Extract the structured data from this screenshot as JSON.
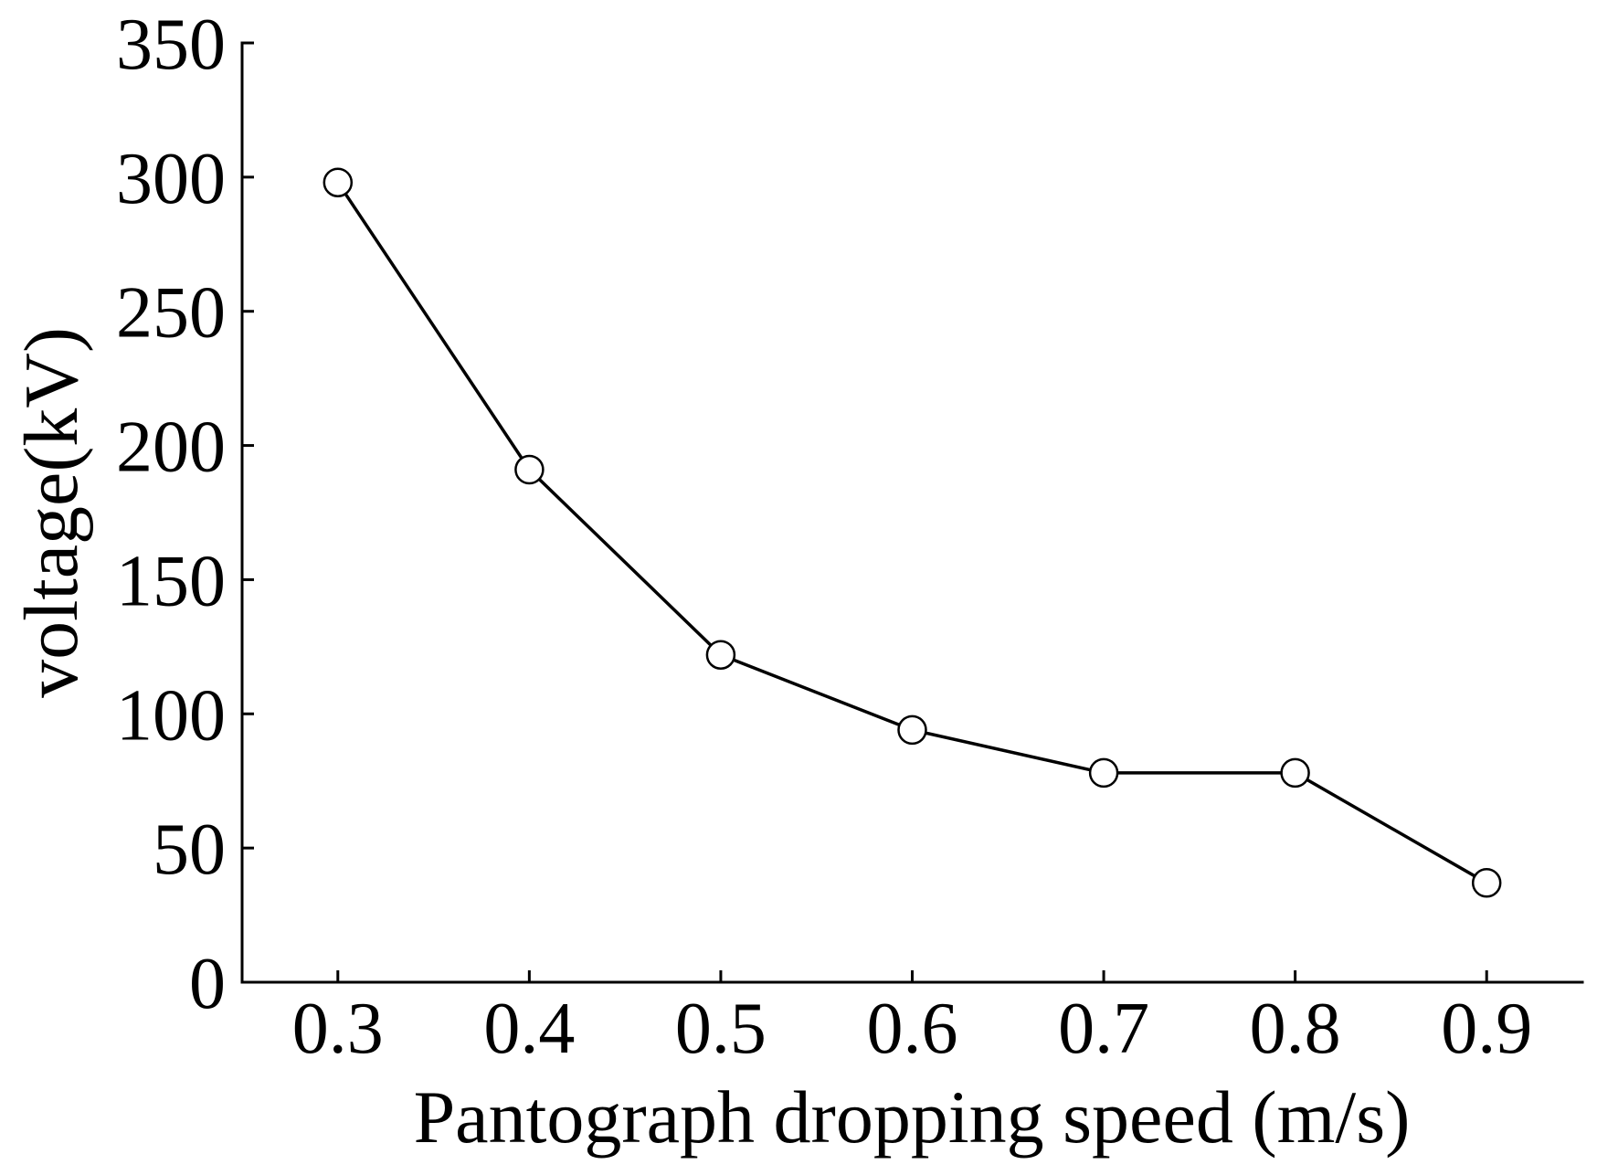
{
  "chart_data": {
    "type": "line",
    "title": "",
    "xlabel": "Pantograph dropping speed (m/s)",
    "ylabel": "voltage(kV)",
    "x": [
      0.3,
      0.4,
      0.5,
      0.6,
      0.7,
      0.8,
      0.9
    ],
    "series": [
      {
        "name": "voltage",
        "values": [
          298,
          191,
          122,
          94,
          78,
          78,
          37
        ],
        "marker": "open-circle"
      }
    ],
    "xlim": [
      0.25,
      0.95
    ],
    "ylim": [
      0,
      350
    ],
    "xticks": [
      "0.3",
      "0.4",
      "0.5",
      "0.6",
      "0.7",
      "0.8",
      "0.9"
    ],
    "yticks": [
      "0",
      "50",
      "100",
      "150",
      "200",
      "250",
      "300",
      "350"
    ],
    "grid": false,
    "legend": "none",
    "colors": {
      "line": "#000000",
      "marker_fill": "#ffffff",
      "marker_edge": "#000000",
      "axis": "#000000"
    }
  }
}
